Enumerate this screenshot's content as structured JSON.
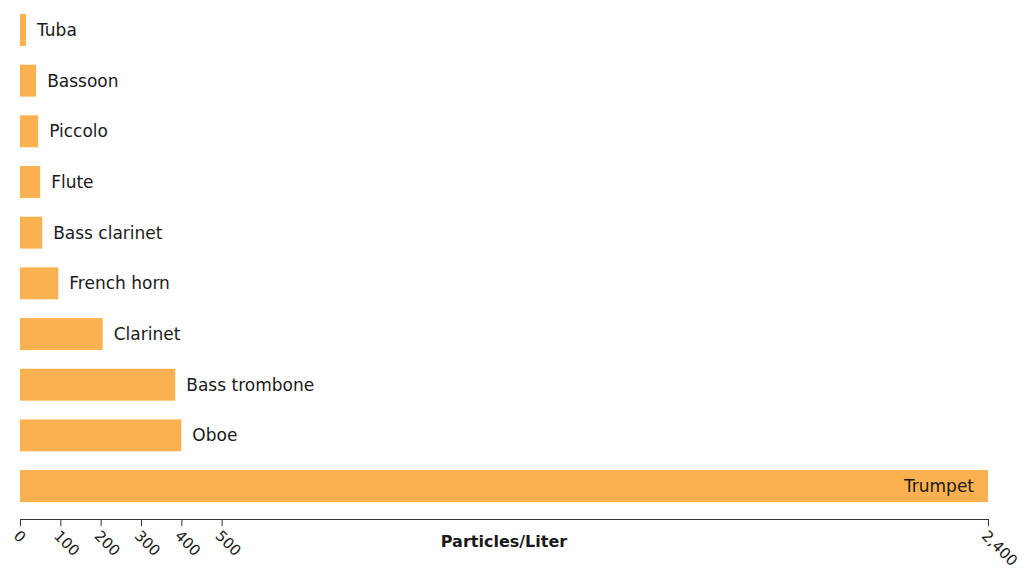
{
  "chart_data": {
    "type": "bar",
    "orientation": "horizontal",
    "x_label": "Particles/Liter",
    "categories": [
      "Tuba",
      "Bassoon",
      "Piccolo",
      "Flute",
      "Bass clarinet",
      "French horn",
      "Clarinet",
      "Bass trombone",
      "Oboe",
      "Trumpet"
    ],
    "values": [
      15,
      40,
      45,
      50,
      55,
      95,
      205,
      385,
      400,
      2400
    ],
    "color": "#fbb150",
    "xlim": [
      0,
      2400
    ],
    "xticks": [
      0,
      100,
      200,
      300,
      400,
      500,
      {
        "value": 2400,
        "label": "2,400"
      }
    ],
    "grid": false
  }
}
